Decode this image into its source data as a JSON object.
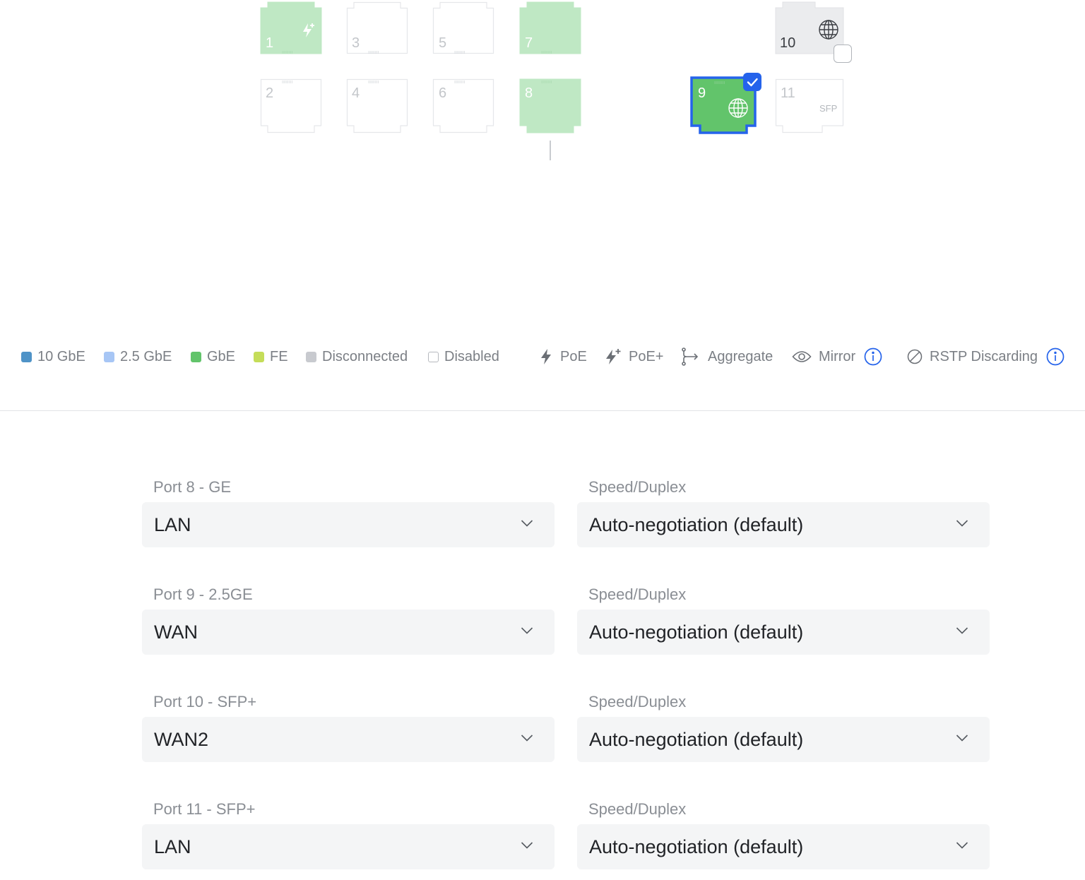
{
  "ports": [
    {
      "num": "1",
      "state": "gbe-light",
      "poe_plus": true
    },
    {
      "num": "2",
      "state": "disabled"
    },
    {
      "num": "3",
      "state": "disabled"
    },
    {
      "num": "4",
      "state": "disabled"
    },
    {
      "num": "5",
      "state": "disabled"
    },
    {
      "num": "6",
      "state": "disabled"
    },
    {
      "num": "7",
      "state": "gbe-light"
    },
    {
      "num": "8",
      "state": "gbe-light"
    },
    {
      "num": "9",
      "state": "gbe-selected",
      "wan": true,
      "checked": true
    },
    {
      "num": "10",
      "state": "disconnected",
      "wan": true,
      "checked": false
    },
    {
      "num": "11",
      "state": "disabled",
      "tag": "SFP"
    }
  ],
  "legend": {
    "items": [
      {
        "label": "10 GbE",
        "color": "#4f93c7"
      },
      {
        "label": "2.5 GbE",
        "color": "#a7c6f5"
      },
      {
        "label": "GbE",
        "color": "#62c46b"
      },
      {
        "label": "FE",
        "color": "#c5dd59"
      },
      {
        "label": "Disconnected",
        "color": "#c8cacf"
      },
      {
        "label": "Disabled",
        "color": "#ffffff"
      }
    ],
    "poe": "PoE",
    "poe_plus": "PoE+",
    "aggregate": "Aggregate",
    "mirror": "Mirror",
    "rstp": "RSTP Discarding"
  },
  "config_rows": [
    {
      "port_label": "Port 8 - GE",
      "network": "LAN",
      "speed_label": "Speed/Duplex",
      "speed": "Auto-negotiation (default)"
    },
    {
      "port_label": "Port 9 - 2.5GE",
      "network": "WAN",
      "speed_label": "Speed/Duplex",
      "speed": "Auto-negotiation (default)"
    },
    {
      "port_label": "Port 10 - SFP+",
      "network": "WAN2",
      "speed_label": "Speed/Duplex",
      "speed": "Auto-negotiation (default)"
    },
    {
      "port_label": "Port 11 - SFP+",
      "network": "LAN",
      "speed_label": "Speed/Duplex",
      "speed": "Auto-negotiation (default)"
    }
  ],
  "colors": {
    "gbe_light": "#bfe8c4",
    "gbe": "#62c46b",
    "selected_border": "#2563eb",
    "disconnected": "#ebecee",
    "info_blue": "#2563eb"
  }
}
